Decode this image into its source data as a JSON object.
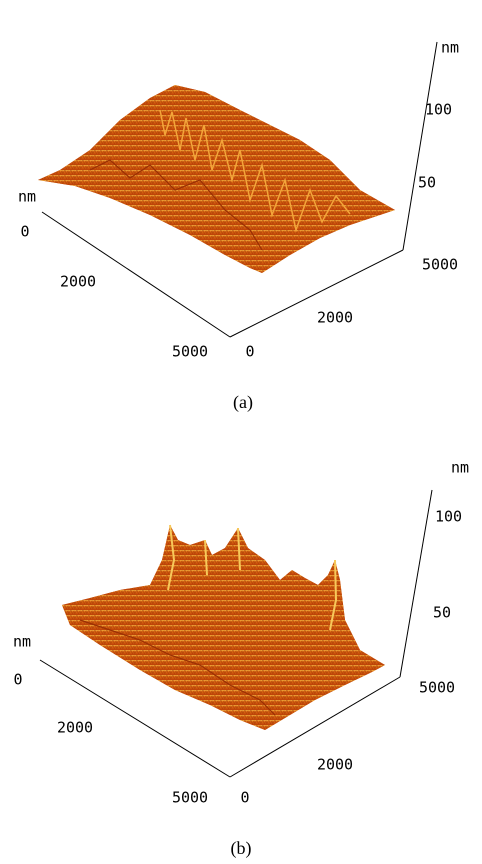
{
  "panels": [
    {
      "caption": "(a)",
      "z_unit": "nm",
      "z_ticks": [
        100,
        50
      ],
      "y_unit": "nm",
      "y_ticks": [
        0,
        2000,
        5000
      ],
      "x_ticks": [
        5000,
        2000,
        0
      ]
    },
    {
      "caption": "(b)",
      "z_unit": "nm",
      "z_ticks": [
        100,
        50
      ],
      "y_unit": "nm",
      "y_ticks": [
        0,
        2000,
        5000
      ],
      "x_ticks": [
        5000,
        2000,
        0
      ]
    }
  ]
}
